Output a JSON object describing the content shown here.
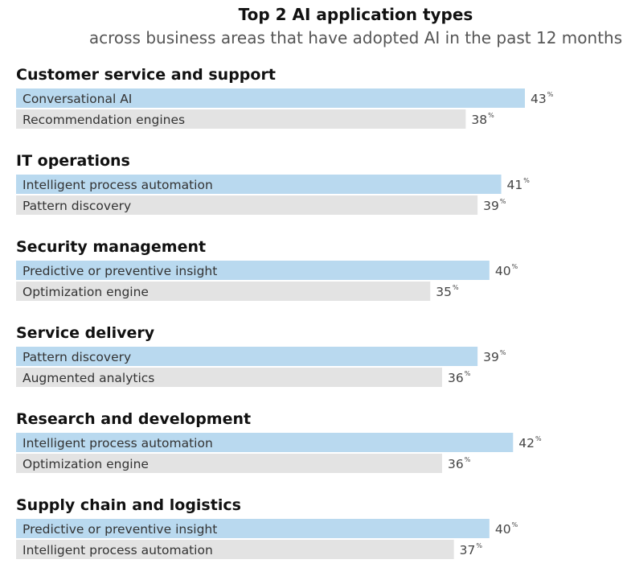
{
  "chart_data": {
    "type": "bar",
    "title": "Top 2 AI application types",
    "subtitle": "across business areas that have adopted AI in the past 12 months",
    "unit": "%",
    "colors": {
      "first": "#b9d9ef",
      "second": "#e3e3e3"
    },
    "groups": [
      {
        "name": "Customer service and support",
        "bars": [
          {
            "label": "Conversational AI",
            "value": 43
          },
          {
            "label": "Recommendation engines",
            "value": 38
          }
        ]
      },
      {
        "name": "IT operations",
        "bars": [
          {
            "label": "Intelligent process automation",
            "value": 41
          },
          {
            "label": "Pattern discovery",
            "value": 39
          }
        ]
      },
      {
        "name": "Security management",
        "bars": [
          {
            "label": "Predictive or preventive insight",
            "value": 40
          },
          {
            "label": "Optimization engine",
            "value": 35
          }
        ]
      },
      {
        "name": "Service delivery",
        "bars": [
          {
            "label": "Pattern discovery",
            "value": 39
          },
          {
            "label": "Augmented analytics",
            "value": 36
          }
        ]
      },
      {
        "name": "Research and development",
        "bars": [
          {
            "label": "Intelligent process automation",
            "value": 42
          },
          {
            "label": "Optimization engine",
            "value": 36
          }
        ]
      },
      {
        "name": "Supply chain and logistics",
        "bars": [
          {
            "label": "Predictive or preventive insight",
            "value": 40
          },
          {
            "label": "Intelligent process automation",
            "value": 37
          }
        ]
      }
    ]
  }
}
